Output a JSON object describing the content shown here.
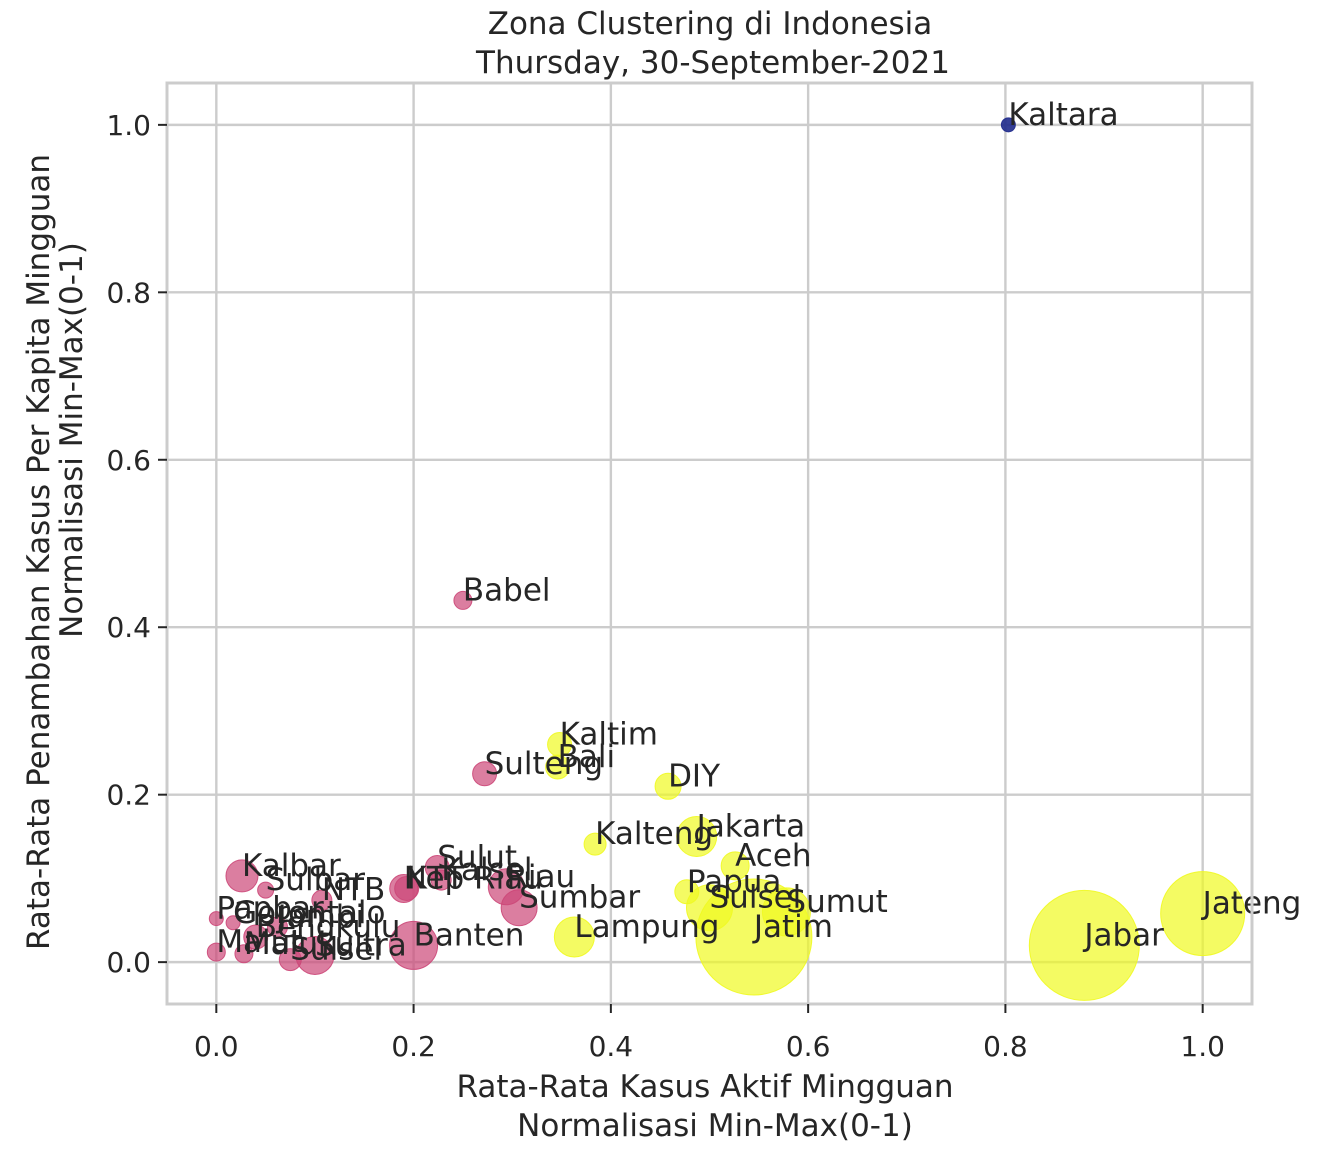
{
  "chart_data": {
    "type": "scatter",
    "title_lines": [
      "Zona Clustering di Indonesia",
      "Thursday, 30-September-2021"
    ],
    "xlabel_lines": [
      "Rata-Rata Kasus Aktif Mingguan",
      "Normalisasi Min-Max(0-1)"
    ],
    "ylabel_lines": [
      "Rata-Rata Penambahan Kasus Per Kapita Mingguan",
      "Normalisasi Min-Max(0-1)"
    ],
    "xlim": [
      -0.05,
      1.05
    ],
    "ylim": [
      -0.05,
      1.05
    ],
    "xticks": [
      0.0,
      0.2,
      0.4,
      0.6,
      0.8,
      1.0
    ],
    "yticks": [
      0.0,
      0.2,
      0.4,
      0.6,
      0.8,
      1.0
    ],
    "xtick_labels": [
      "0.0",
      "0.2",
      "0.4",
      "0.6",
      "0.8",
      "1.0"
    ],
    "ytick_labels": [
      "0.0",
      "0.2",
      "0.4",
      "0.6",
      "0.8",
      "1.0"
    ],
    "grid": true,
    "colors": {
      "cluster_navy": "#1f2a8c",
      "cluster_magenta": "#cc4778",
      "cluster_yellow": "#f0f921"
    },
    "points": [
      {
        "label": "Kaltara",
        "x": 0.803,
        "y": 1.0,
        "size": 7,
        "cluster": "cluster_navy"
      },
      {
        "label": "Babel",
        "x": 0.25,
        "y": 0.432,
        "size": 9,
        "cluster": "cluster_magenta"
      },
      {
        "label": "Sulteng",
        "x": 0.272,
        "y": 0.225,
        "size": 12,
        "cluster": "cluster_magenta"
      },
      {
        "label": "Sulut",
        "x": 0.224,
        "y": 0.113,
        "size": 12,
        "cluster": "cluster_magenta"
      },
      {
        "label": "Kalsel",
        "x": 0.228,
        "y": 0.098,
        "size": 10,
        "cluster": "cluster_magenta"
      },
      {
        "label": "Riau",
        "x": 0.294,
        "y": 0.09,
        "size": 18,
        "cluster": "cluster_magenta"
      },
      {
        "label": "Kep Riau",
        "x": 0.193,
        "y": 0.088,
        "size": 12,
        "cluster": "cluster_magenta"
      },
      {
        "label": "NTT",
        "x": 0.19,
        "y": 0.088,
        "size": 14,
        "cluster": "cluster_magenta"
      },
      {
        "label": "Sumbar",
        "x": 0.307,
        "y": 0.065,
        "size": 18,
        "cluster": "cluster_magenta"
      },
      {
        "label": "Kalbar",
        "x": 0.026,
        "y": 0.103,
        "size": 16,
        "cluster": "cluster_magenta"
      },
      {
        "label": "Sulbar",
        "x": 0.05,
        "y": 0.086,
        "size": 8,
        "cluster": "cluster_magenta"
      },
      {
        "label": "NTB",
        "x": 0.107,
        "y": 0.074,
        "size": 10,
        "cluster": "cluster_magenta"
      },
      {
        "label": "Papbar",
        "x": 0.0,
        "y": 0.052,
        "size": 7,
        "cluster": "cluster_magenta"
      },
      {
        "label": "Gorontalo",
        "x": 0.017,
        "y": 0.047,
        "size": 7,
        "cluster": "cluster_magenta"
      },
      {
        "label": "Jambi",
        "x": 0.062,
        "y": 0.042,
        "size": 10,
        "cluster": "cluster_magenta"
      },
      {
        "label": "Bengkulu",
        "x": 0.04,
        "y": 0.03,
        "size": 12,
        "cluster": "cluster_magenta"
      },
      {
        "label": "Malut",
        "x": 0.0,
        "y": 0.012,
        "size": 9,
        "cluster": "cluster_magenta"
      },
      {
        "label": "Maluku",
        "x": 0.028,
        "y": 0.01,
        "size": 9,
        "cluster": "cluster_magenta"
      },
      {
        "label": "Sulsel",
        "x": 0.075,
        "y": 0.003,
        "size": 11,
        "cluster": "cluster_magenta"
      },
      {
        "label": "Sultra",
        "x": 0.1,
        "y": 0.008,
        "size": 19,
        "cluster": "cluster_magenta"
      },
      {
        "label": "Banten",
        "x": 0.2,
        "y": 0.02,
        "size": 24,
        "cluster": "cluster_magenta"
      },
      {
        "label": "Kaltim",
        "x": 0.348,
        "y": 0.26,
        "size": 12,
        "cluster": "cluster_yellow"
      },
      {
        "label": "Bali",
        "x": 0.346,
        "y": 0.233,
        "size": 12,
        "cluster": "cluster_yellow"
      },
      {
        "label": "DIY",
        "x": 0.458,
        "y": 0.21,
        "size": 13,
        "cluster": "cluster_yellow"
      },
      {
        "label": "Kalteng",
        "x": 0.384,
        "y": 0.141,
        "size": 11,
        "cluster": "cluster_yellow"
      },
      {
        "label": "Jakarta",
        "x": 0.487,
        "y": 0.15,
        "size": 20,
        "cluster": "cluster_yellow"
      },
      {
        "label": "Aceh",
        "x": 0.526,
        "y": 0.115,
        "size": 14,
        "cluster": "cluster_yellow"
      },
      {
        "label": "Papua",
        "x": 0.477,
        "y": 0.084,
        "size": 12,
        "cluster": "cluster_yellow"
      },
      {
        "label": "Sulsel",
        "x": 0.5,
        "y": 0.065,
        "size": 23,
        "cluster": "cluster_yellow"
      },
      {
        "label": "Sumut",
        "x": 0.578,
        "y": 0.06,
        "size": 24,
        "cluster": "cluster_yellow"
      },
      {
        "label": "Lampung",
        "x": 0.363,
        "y": 0.03,
        "size": 20,
        "cluster": "cluster_yellow"
      },
      {
        "label": "Jatim",
        "x": 0.545,
        "y": 0.03,
        "size": 58,
        "cluster": "cluster_yellow"
      },
      {
        "label": "Jabar",
        "x": 0.88,
        "y": 0.02,
        "size": 55,
        "cluster": "cluster_yellow"
      },
      {
        "label": "Jateng",
        "x": 1.0,
        "y": 0.058,
        "size": 42,
        "cluster": "cluster_yellow"
      }
    ]
  }
}
